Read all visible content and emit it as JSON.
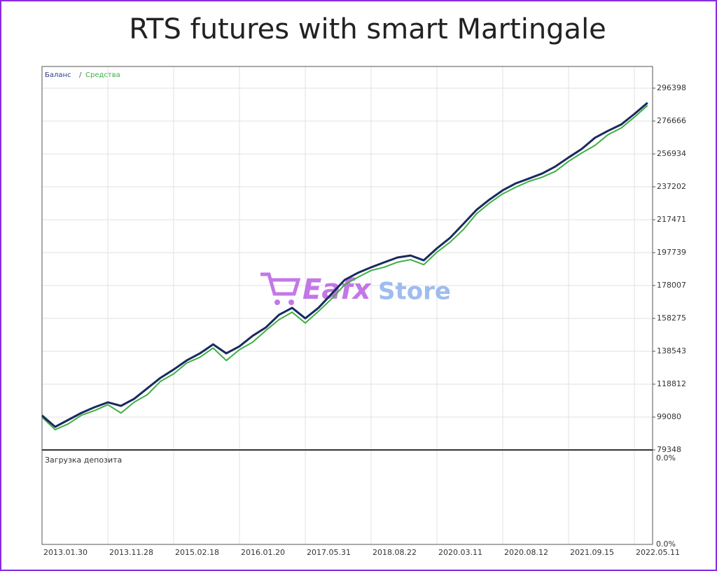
{
  "chart_data": {
    "type": "line",
    "title": "RTS futures  with smart Martingale",
    "legend": [
      "Баланс",
      "Средства"
    ],
    "lower_panel": {
      "title": "Загрузка депозита",
      "top_label": "0.0%",
      "bottom_label": "0.0%"
    },
    "watermark": [
      "Eafx",
      "Store"
    ],
    "categories": [
      "2013.01.30",
      null,
      null,
      null,
      null,
      "2013.11.28",
      null,
      null,
      null,
      null,
      "2015.02.18",
      null,
      null,
      null,
      null,
      "2016.01.20",
      null,
      null,
      null,
      null,
      "2017.05.31",
      null,
      null,
      null,
      null,
      "2018.08.22",
      null,
      null,
      null,
      null,
      "2020.03.11",
      null,
      null,
      null,
      null,
      "2020.08.12",
      null,
      null,
      null,
      null,
      "2021.09.15",
      null,
      null,
      null,
      null,
      "2022.05.11",
      null
    ],
    "series": [
      {
        "name": "Баланс",
        "color": "#1a2a5e",
        "values": [
          100000,
          93200,
          97400,
          101600,
          105000,
          107900,
          105800,
          110000,
          116300,
          122600,
          127600,
          133100,
          137300,
          142700,
          137300,
          141500,
          147800,
          152800,
          160400,
          164600,
          158300,
          164600,
          173000,
          181400,
          185600,
          188900,
          191900,
          194800,
          196000,
          193100,
          200300,
          206600,
          214900,
          223300,
          229600,
          235100,
          239300,
          242200,
          245200,
          249400,
          254800,
          259900,
          266600,
          270800,
          274600,
          280900,
          287600
        ]
      },
      {
        "name": "Средства",
        "color": "#3cb043",
        "values": [
          99000,
          91500,
          95000,
          100200,
          103000,
          106500,
          101500,
          108000,
          112500,
          120500,
          125000,
          131500,
          135000,
          140500,
          133000,
          139500,
          144000,
          151000,
          157500,
          162000,
          155500,
          162500,
          170000,
          178500,
          183000,
          187000,
          189000,
          192000,
          193500,
          190500,
          198000,
          204000,
          211500,
          221000,
          227500,
          233000,
          237000,
          240500,
          243000,
          246500,
          252500,
          257500,
          262000,
          268500,
          272500,
          279000,
          286000
        ]
      }
    ],
    "ylim": [
      79348,
      309398
    ],
    "yticks": [
      79348,
      99080,
      118812,
      138543,
      158275,
      178007,
      197739,
      217471,
      237202,
      256934,
      276666,
      296398
    ],
    "grid": true
  }
}
